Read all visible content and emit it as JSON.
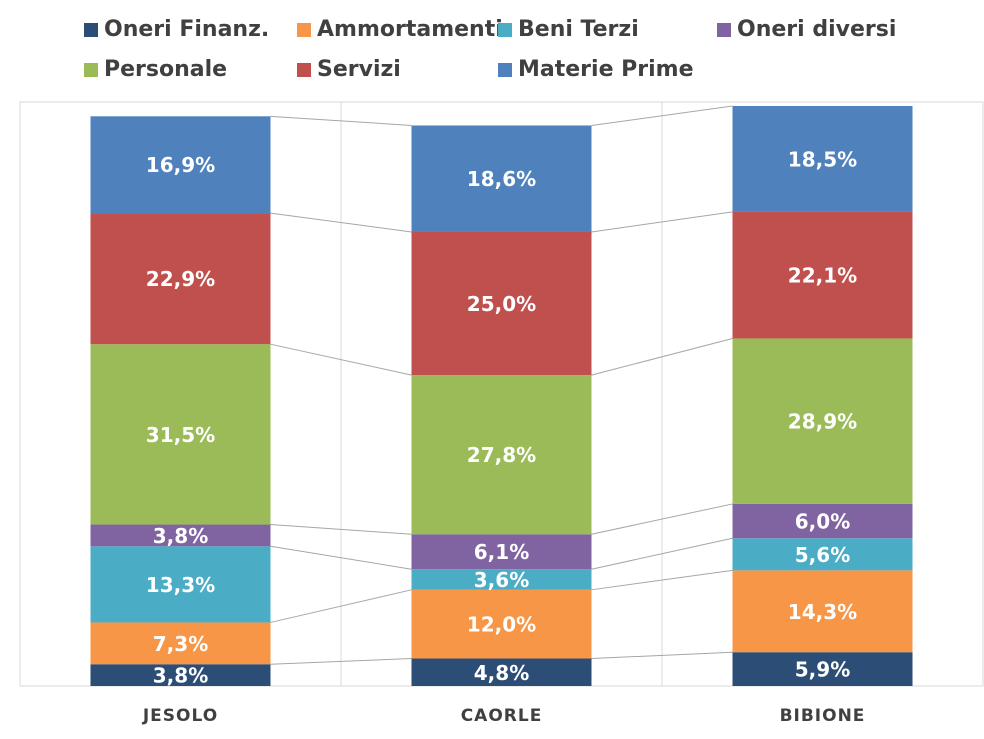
{
  "chart_data": {
    "type": "bar",
    "stacked": true,
    "categories": [
      "JESOLO",
      "CAORLE",
      "BIBIONE"
    ],
    "ylim": [
      0,
      102
    ],
    "series": [
      {
        "name": "Oneri Finanz.",
        "color": "#2c4d75",
        "values": [
          3.8,
          4.8,
          5.9
        ],
        "value_labels": [
          "3,8%",
          "4,8%",
          "5,9%"
        ]
      },
      {
        "name": "Ammortamenti",
        "color": "#f79646",
        "values": [
          7.3,
          12.0,
          14.3
        ],
        "value_labels": [
          "7,3%",
          "12,0%",
          "14,3%"
        ]
      },
      {
        "name": "Beni Terzi",
        "color": "#4bacc6",
        "values": [
          13.3,
          3.6,
          5.6
        ],
        "value_labels": [
          "13,3%",
          "3,6%",
          "5,6%"
        ]
      },
      {
        "name": "Oneri diversi",
        "color": "#8064a2",
        "values": [
          3.8,
          6.1,
          6.0
        ],
        "value_labels": [
          "3,8%",
          "6,1%",
          "6,0%"
        ]
      },
      {
        "name": "Personale",
        "color": "#9bbb59",
        "values": [
          31.5,
          27.8,
          28.9
        ],
        "value_labels": [
          "31,5%",
          "27,8%",
          "28,9%"
        ]
      },
      {
        "name": "Servizi",
        "color": "#c0504d",
        "values": [
          22.9,
          25.0,
          22.1
        ],
        "value_labels": [
          "22,9%",
          "25,0%",
          "22,1%"
        ]
      },
      {
        "name": "Materie Prime",
        "color": "#4f81bd",
        "values": [
          16.9,
          18.6,
          18.5
        ],
        "value_labels": [
          "16,9%",
          "18,6%",
          "18,5%"
        ]
      }
    ]
  }
}
